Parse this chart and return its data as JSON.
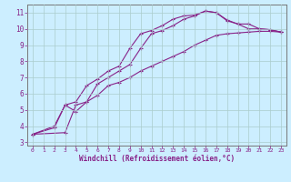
{
  "title": "",
  "xlabel": "Windchill (Refroidissement éolien,°C)",
  "ylabel": "",
  "bg_color": "#cceeff",
  "grid_color": "#aacccc",
  "line_color": "#882288",
  "spine_color": "#777777",
  "xlim": [
    -0.5,
    23.5
  ],
  "ylim": [
    2.8,
    11.5
  ],
  "yticks": [
    3,
    4,
    5,
    6,
    7,
    8,
    9,
    10,
    11
  ],
  "xticks": [
    0,
    1,
    2,
    3,
    4,
    5,
    6,
    7,
    8,
    9,
    10,
    11,
    12,
    13,
    14,
    15,
    16,
    17,
    18,
    19,
    20,
    21,
    22,
    23
  ],
  "line1_x": [
    0,
    2,
    3,
    4,
    5,
    6,
    7,
    8,
    9,
    10,
    11,
    12,
    13,
    14,
    15,
    16,
    17,
    18,
    19,
    20,
    21,
    22,
    23
  ],
  "line1_y": [
    3.5,
    3.9,
    5.3,
    5.5,
    6.5,
    6.9,
    7.4,
    7.7,
    8.8,
    9.7,
    9.9,
    10.2,
    10.6,
    10.8,
    10.85,
    11.1,
    11.0,
    10.5,
    10.3,
    10.0,
    10.0,
    9.95,
    9.8
  ],
  "line2_x": [
    0,
    3,
    4,
    5,
    6,
    7,
    8,
    9,
    10,
    11,
    12,
    13,
    14,
    15,
    16,
    17,
    18,
    19,
    20,
    21,
    22,
    23
  ],
  "line2_y": [
    3.5,
    3.6,
    5.3,
    5.5,
    6.6,
    7.0,
    7.4,
    7.8,
    8.8,
    9.7,
    9.9,
    10.2,
    10.6,
    10.8,
    11.1,
    11.0,
    10.55,
    10.3,
    10.3,
    10.0,
    9.95,
    9.8
  ],
  "line3_x": [
    0,
    2,
    3,
    4,
    5,
    6,
    7,
    8,
    9,
    10,
    11,
    12,
    13,
    14,
    15,
    16,
    17,
    18,
    19,
    20,
    21,
    22,
    23
  ],
  "line3_y": [
    3.5,
    4.0,
    5.3,
    4.9,
    5.5,
    5.9,
    6.5,
    6.7,
    7.0,
    7.4,
    7.7,
    8.0,
    8.3,
    8.6,
    9.0,
    9.3,
    9.6,
    9.7,
    9.75,
    9.8,
    9.85,
    9.85,
    9.8
  ]
}
